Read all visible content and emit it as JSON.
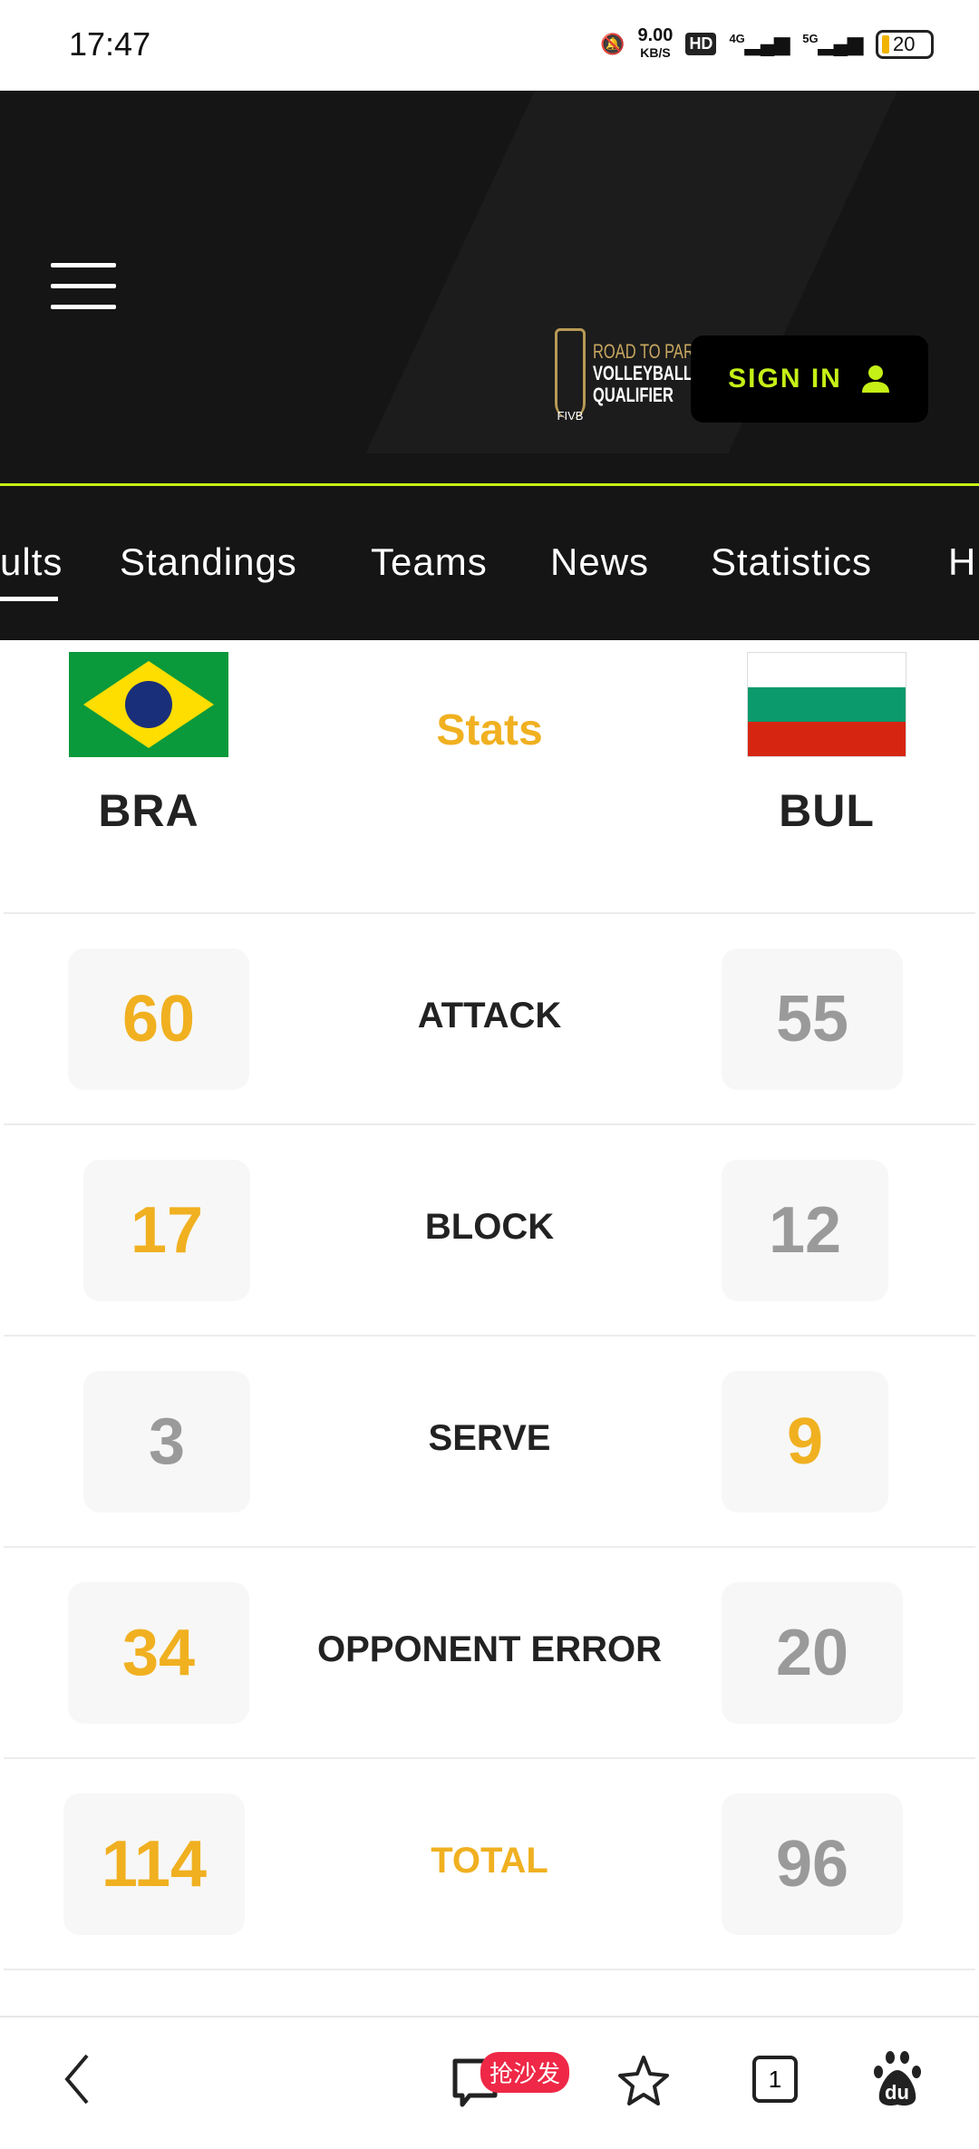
{
  "status_bar": {
    "time": "17:47",
    "net_speed": "9.00",
    "net_unit": "KB/S",
    "hd": "HD",
    "sig1": "4G",
    "sig2": "5G",
    "battery": "20"
  },
  "header": {
    "logo_line1": "ROAD TO PARIS",
    "logo_line2": "VOLLEYBALL",
    "logo_line3": "QUALIFIER",
    "logo_brand": "FIVB",
    "sign_in": "SIGN IN"
  },
  "nav": {
    "items": [
      "ults",
      "Standings",
      "Teams",
      "News",
      "Statistics",
      "H"
    ]
  },
  "match": {
    "home": {
      "code": "BRA"
    },
    "away": {
      "code": "BUL"
    },
    "title": "Stats"
  },
  "stats": [
    {
      "label": "ATTACK",
      "home": "60",
      "away": "55",
      "leader": "home"
    },
    {
      "label": "BLOCK",
      "home": "17",
      "away": "12",
      "leader": "home"
    },
    {
      "label": "SERVE",
      "home": "3",
      "away": "9",
      "leader": "away"
    },
    {
      "label": "OPPONENT ERROR",
      "home": "34",
      "away": "20",
      "leader": "home"
    },
    {
      "label": "TOTAL",
      "home": "114",
      "away": "96",
      "leader": "home"
    }
  ],
  "colors": {
    "accent": "#c5f016",
    "highlight": "#f0b020",
    "muted": "#9a9a9a"
  },
  "browser": {
    "comment_badge": "抢沙发",
    "tabs_count": "1",
    "baidu": "du"
  }
}
